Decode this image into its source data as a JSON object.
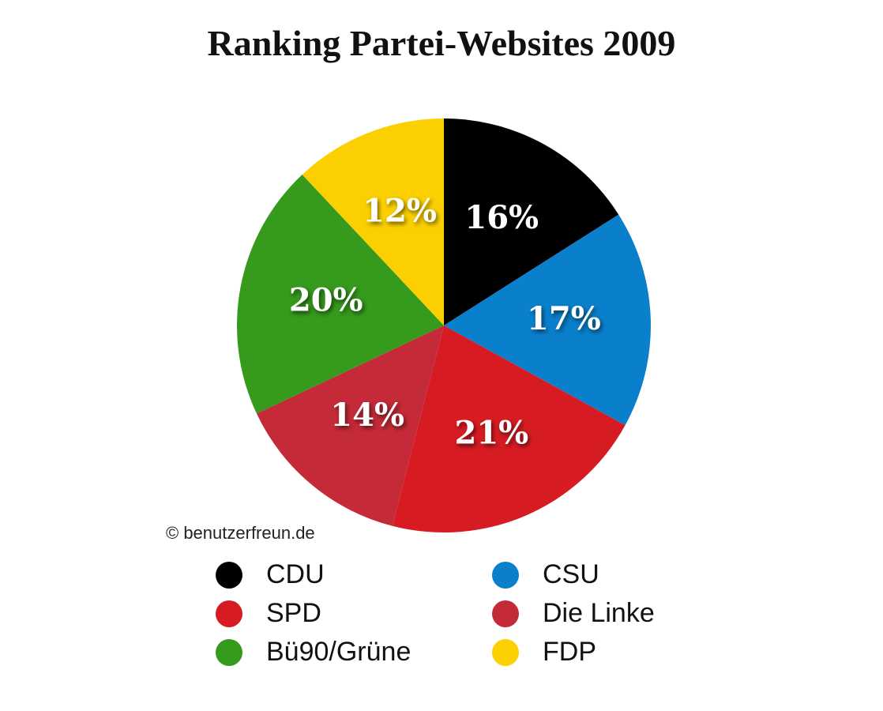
{
  "chart_data": {
    "type": "pie",
    "title": "Ranking Partei-Websites 2009",
    "start": "top",
    "direction": "clockwise",
    "slices": [
      {
        "name": "CDU",
        "value": 16,
        "label": "16%",
        "color": "#000000"
      },
      {
        "name": "CSU",
        "value": 17,
        "label": "17%",
        "color": "#0a80cc"
      },
      {
        "name": "SPD",
        "value": 21,
        "label": "21%",
        "color": "#d61c22"
      },
      {
        "name": "Die Linke",
        "value": 14,
        "label": "14%",
        "color": "#c52a38"
      },
      {
        "name": "Bü90/Grüne",
        "value": 20,
        "label": "20%",
        "color": "#369a1c"
      },
      {
        "name": "FDP",
        "value": 12,
        "label": "12%",
        "color": "#fcd000"
      }
    ],
    "legend_placement": "bottom",
    "legend_order": [
      "CDU",
      "CSU",
      "SPD",
      "Die Linke",
      "Bü90/Grüne",
      "FDP"
    ]
  },
  "credit": "© benutzerfreun.de"
}
